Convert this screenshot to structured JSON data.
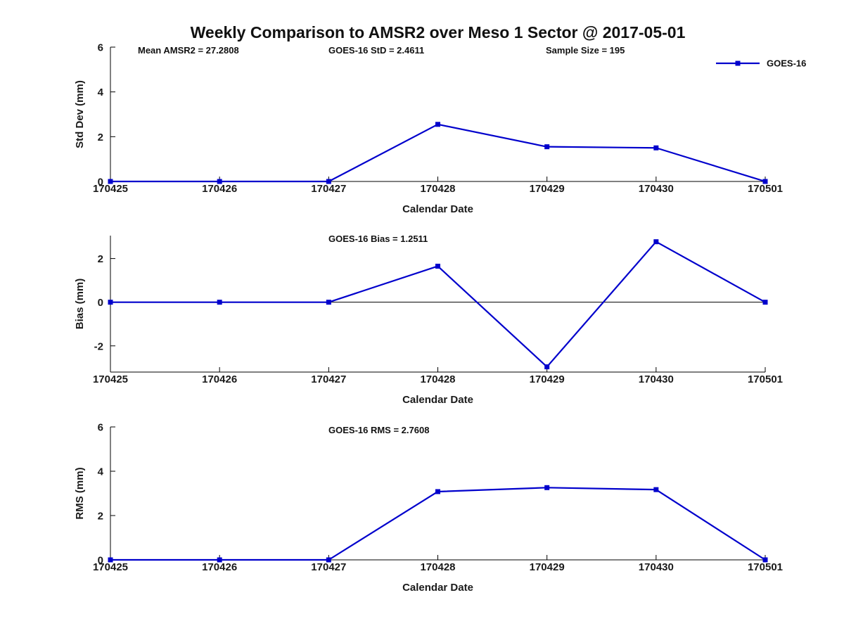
{
  "page": {
    "title": "Weekly Comparison to AMSR2 over Meso 1 Sector @ 2017-05-01"
  },
  "colors": {
    "line": "#0000CC",
    "axis": "#000000",
    "text": "#111111"
  },
  "legend": {
    "label": "GOES-16",
    "position": "top-right",
    "box": "off"
  },
  "chart_data": [
    {
      "name": "std-dev-panel",
      "type": "line",
      "title": "",
      "ylabel": "Std Dev (mm)",
      "xlabel": "Calendar Date",
      "categories": [
        "170425",
        "170426",
        "170427",
        "170428",
        "170429",
        "170430",
        "170501"
      ],
      "series": [
        {
          "name": "GOES-16",
          "values": [
            0,
            0,
            0,
            2.55,
            1.55,
            1.5,
            0
          ],
          "color": "#0000CC",
          "marker": "square"
        }
      ],
      "ylim": [
        0,
        6
      ],
      "yticks": [
        0,
        2,
        4,
        6
      ],
      "grid": false,
      "zero_line": false,
      "annotations": [
        {
          "text": "Mean AMSR2 = 27.2808",
          "x": 196
        },
        {
          "text": "GOES-16 StD = 2.4611",
          "x": 467
        },
        {
          "text": "Sample Size = 195",
          "x": 776
        }
      ],
      "legend": {
        "visible": true,
        "label": "GOES-16"
      }
    },
    {
      "name": "bias-panel",
      "type": "line",
      "title": "",
      "ylabel": "Bias (mm)",
      "xlabel": "Calendar Date",
      "categories": [
        "170425",
        "170426",
        "170427",
        "170428",
        "170429",
        "170430",
        "170501"
      ],
      "series": [
        {
          "name": "GOES-16",
          "values": [
            0,
            0,
            0,
            1.65,
            -2.96,
            2.77,
            0
          ],
          "color": "#0000CC",
          "marker": "square"
        }
      ],
      "ylim": [
        -3.2,
        3.05
      ],
      "yticks": [
        -2,
        0,
        2
      ],
      "grid": false,
      "zero_line": true,
      "annotations": [
        {
          "text": "GOES-16 Bias  = 1.2511",
          "x": 467
        }
      ],
      "legend": {
        "visible": false,
        "label": ""
      }
    },
    {
      "name": "rms-panel",
      "type": "line",
      "title": "",
      "ylabel": "RMS (mm)",
      "xlabel": "Calendar Date",
      "categories": [
        "170425",
        "170426",
        "170427",
        "170428",
        "170429",
        "170430",
        "170501"
      ],
      "series": [
        {
          "name": "GOES-16",
          "values": [
            0,
            0,
            0,
            3.08,
            3.26,
            3.17,
            0
          ],
          "color": "#0000CC",
          "marker": "square"
        }
      ],
      "ylim": [
        0,
        6
      ],
      "yticks": [
        0,
        2,
        4,
        6
      ],
      "grid": false,
      "zero_line": false,
      "annotations": [
        {
          "text": "GOES-16 RMS = 2.7608",
          "x": 467
        }
      ],
      "legend": {
        "visible": false,
        "label": ""
      }
    }
  ]
}
